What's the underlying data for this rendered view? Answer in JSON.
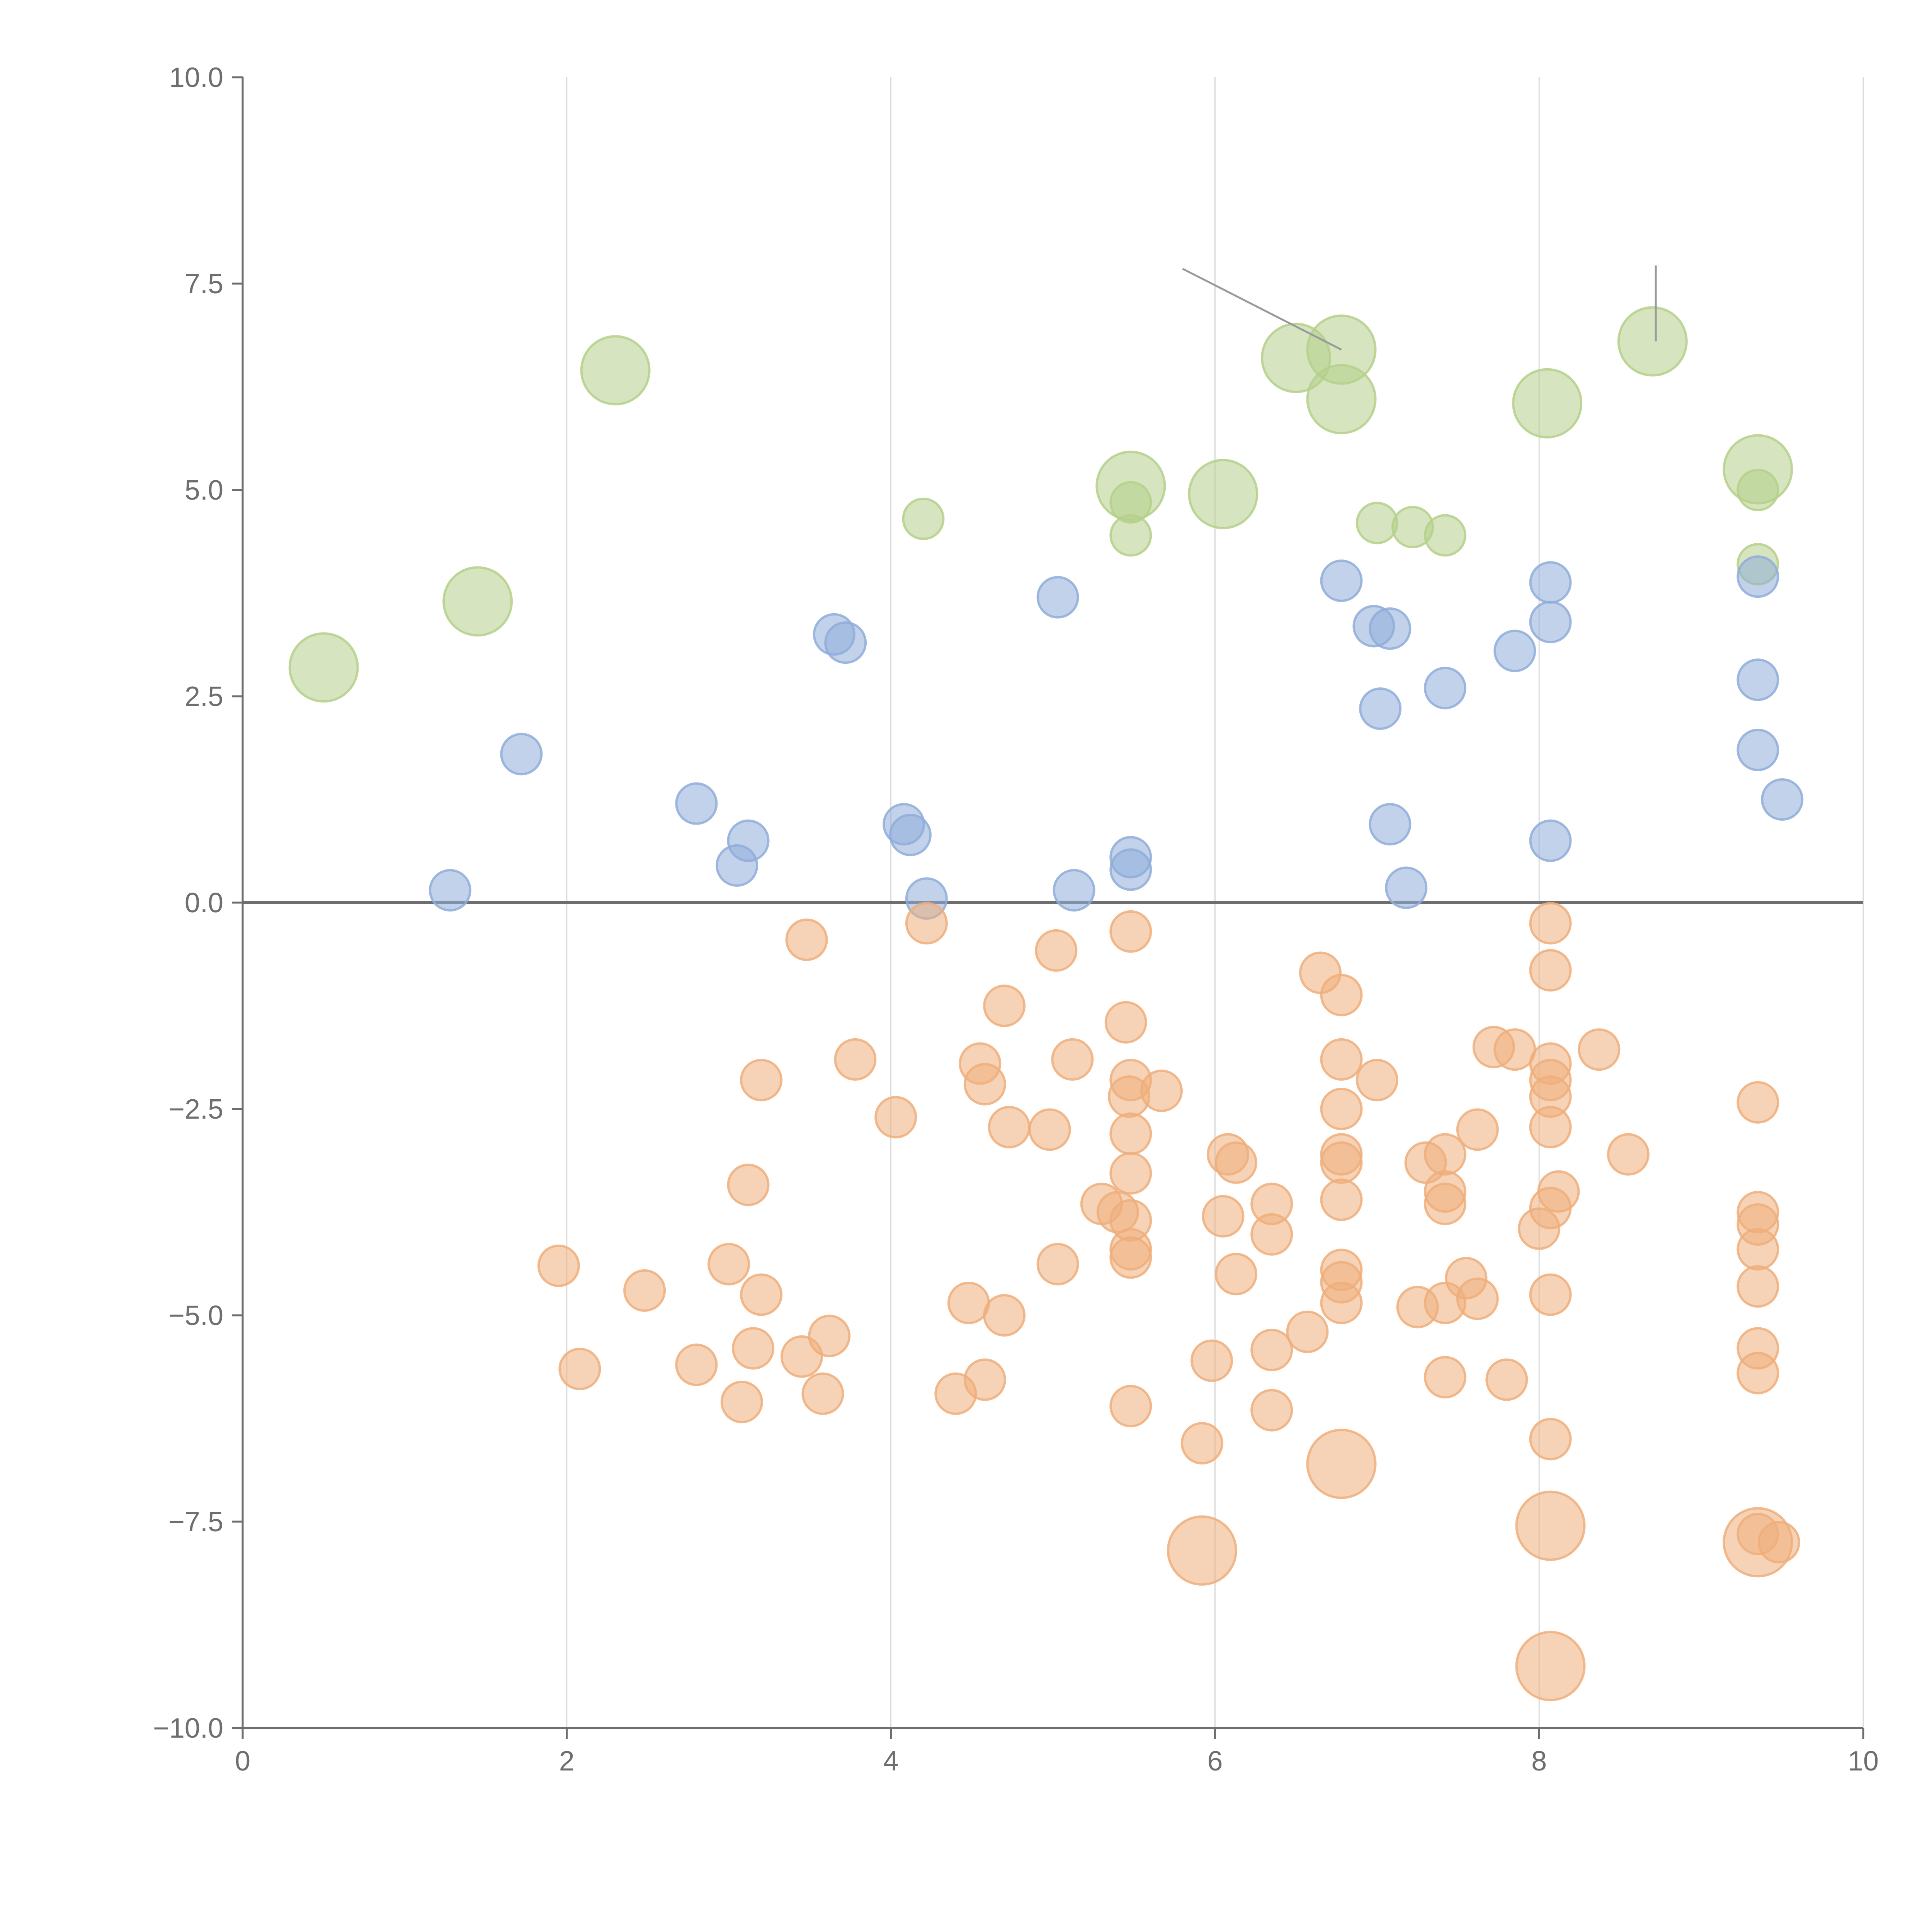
{
  "chart_data": {
    "type": "scatter",
    "title": "",
    "xlabel": "",
    "ylabel": "",
    "xlim": [
      0,
      10
    ],
    "ylim": [
      -10,
      10
    ],
    "grid": "vertical",
    "x_ticks": [
      0,
      2,
      4,
      6,
      8,
      10
    ],
    "x_tick_labels": [
      "0",
      "2",
      "4",
      "6",
      "8",
      "10"
    ],
    "y_ticks": [
      10,
      7.5,
      5,
      2.5,
      0,
      -2.5,
      -5,
      -7.5,
      -10
    ],
    "y_tick_labels": [
      "10.0",
      "7.5",
      "5.0",
      "2.5",
      "0.0",
      "−2.5",
      "−5.0",
      "−7.5",
      "−10.0"
    ],
    "reference_line_y": 0,
    "colors": {
      "green": "#b5d08a",
      "blue": "#8fadd9",
      "orange": "#eeae7b",
      "axis": "#6e6e6e",
      "grid": "#d9d9d9"
    },
    "series": [
      {
        "name": "green",
        "color": "#b5d08a",
        "points": [
          {
            "x": 0.5,
            "y": 2.85,
            "s": 2
          },
          {
            "x": 1.45,
            "y": 3.65,
            "s": 2
          },
          {
            "x": 2.3,
            "y": 6.45,
            "s": 2
          },
          {
            "x": 4.2,
            "y": 4.65,
            "s": 1
          },
          {
            "x": 5.48,
            "y": 5.05,
            "s": 2
          },
          {
            "x": 5.48,
            "y": 4.85,
            "s": 1
          },
          {
            "x": 5.48,
            "y": 4.45,
            "s": 1
          },
          {
            "x": 6.05,
            "y": 4.95,
            "s": 2
          },
          {
            "x": 6.5,
            "y": 6.6,
            "s": 2
          },
          {
            "x": 6.78,
            "y": 6.7,
            "s": 2
          },
          {
            "x": 6.78,
            "y": 6.1,
            "s": 2
          },
          {
            "x": 7.0,
            "y": 4.6,
            "s": 1
          },
          {
            "x": 7.22,
            "y": 4.55,
            "s": 1
          },
          {
            "x": 7.42,
            "y": 4.45,
            "s": 1
          },
          {
            "x": 8.05,
            "y": 6.05,
            "s": 2
          },
          {
            "x": 8.7,
            "y": 6.8,
            "s": 2
          },
          {
            "x": 9.35,
            "y": 5.25,
            "s": 2
          },
          {
            "x": 9.35,
            "y": 5.0,
            "s": 1
          },
          {
            "x": 9.35,
            "y": 4.1,
            "s": 1
          }
        ]
      },
      {
        "name": "blue",
        "color": "#8fadd9",
        "points": [
          {
            "x": 1.28,
            "y": 0.15,
            "s": 1
          },
          {
            "x": 1.72,
            "y": 1.8,
            "s": 1
          },
          {
            "x": 2.8,
            "y": 1.2,
            "s": 1
          },
          {
            "x": 3.05,
            "y": 0.45,
            "s": 1
          },
          {
            "x": 3.12,
            "y": 0.75,
            "s": 1
          },
          {
            "x": 3.65,
            "y": 3.25,
            "s": 1
          },
          {
            "x": 3.72,
            "y": 3.15,
            "s": 1
          },
          {
            "x": 4.08,
            "y": 0.95,
            "s": 1
          },
          {
            "x": 4.12,
            "y": 0.82,
            "s": 1
          },
          {
            "x": 4.22,
            "y": 0.05,
            "s": 1
          },
          {
            "x": 5.03,
            "y": 3.7,
            "s": 1
          },
          {
            "x": 5.13,
            "y": 0.15,
            "s": 1
          },
          {
            "x": 5.48,
            "y": 0.55,
            "s": 1
          },
          {
            "x": 5.48,
            "y": 0.4,
            "s": 1
          },
          {
            "x": 6.78,
            "y": 3.9,
            "s": 1
          },
          {
            "x": 6.98,
            "y": 3.35,
            "s": 1
          },
          {
            "x": 7.08,
            "y": 3.32,
            "s": 1
          },
          {
            "x": 7.02,
            "y": 2.35,
            "s": 1
          },
          {
            "x": 7.08,
            "y": 0.95,
            "s": 1
          },
          {
            "x": 7.18,
            "y": 0.18,
            "s": 1
          },
          {
            "x": 7.42,
            "y": 2.6,
            "s": 1
          },
          {
            "x": 7.85,
            "y": 3.05,
            "s": 1
          },
          {
            "x": 8.07,
            "y": 3.88,
            "s": 1
          },
          {
            "x": 8.07,
            "y": 3.4,
            "s": 1
          },
          {
            "x": 8.07,
            "y": 0.75,
            "s": 1
          },
          {
            "x": 9.35,
            "y": 3.95,
            "s": 1
          },
          {
            "x": 9.35,
            "y": 2.7,
            "s": 1
          },
          {
            "x": 9.35,
            "y": 1.85,
            "s": 1
          },
          {
            "x": 9.5,
            "y": 1.25,
            "s": 1
          }
        ]
      },
      {
        "name": "orange",
        "color": "#eeae7b",
        "points": [
          {
            "x": 1.95,
            "y": -4.4,
            "s": 1
          },
          {
            "x": 2.08,
            "y": -5.65,
            "s": 1
          },
          {
            "x": 2.48,
            "y": -4.7,
            "s": 1
          },
          {
            "x": 2.8,
            "y": -5.6,
            "s": 1
          },
          {
            "x": 3.0,
            "y": -4.38,
            "s": 1
          },
          {
            "x": 3.08,
            "y": -6.05,
            "s": 1
          },
          {
            "x": 3.12,
            "y": -3.42,
            "s": 1
          },
          {
            "x": 3.15,
            "y": -5.4,
            "s": 1
          },
          {
            "x": 3.2,
            "y": -2.15,
            "s": 1
          },
          {
            "x": 3.2,
            "y": -4.75,
            "s": 1
          },
          {
            "x": 3.45,
            "y": -5.5,
            "s": 1
          },
          {
            "x": 3.48,
            "y": -0.45,
            "s": 1
          },
          {
            "x": 3.58,
            "y": -5.95,
            "s": 1
          },
          {
            "x": 3.62,
            "y": -5.25,
            "s": 1
          },
          {
            "x": 3.78,
            "y": -1.9,
            "s": 1
          },
          {
            "x": 4.03,
            "y": -2.6,
            "s": 1
          },
          {
            "x": 4.22,
            "y": -0.25,
            "s": 1
          },
          {
            "x": 4.4,
            "y": -5.95,
            "s": 1
          },
          {
            "x": 4.48,
            "y": -4.85,
            "s": 1
          },
          {
            "x": 4.55,
            "y": -1.95,
            "s": 1
          },
          {
            "x": 4.58,
            "y": -2.2,
            "s": 1
          },
          {
            "x": 4.58,
            "y": -5.78,
            "s": 1
          },
          {
            "x": 4.7,
            "y": -1.25,
            "s": 1
          },
          {
            "x": 4.7,
            "y": -5.0,
            "s": 1
          },
          {
            "x": 4.73,
            "y": -2.72,
            "s": 1
          },
          {
            "x": 4.98,
            "y": -2.75,
            "s": 1
          },
          {
            "x": 5.02,
            "y": -0.58,
            "s": 1
          },
          {
            "x": 5.03,
            "y": -4.38,
            "s": 1
          },
          {
            "x": 5.12,
            "y": -1.9,
            "s": 1
          },
          {
            "x": 5.3,
            "y": -3.65,
            "s": 1
          },
          {
            "x": 5.4,
            "y": -3.75,
            "s": 1
          },
          {
            "x": 5.45,
            "y": -1.45,
            "s": 1
          },
          {
            "x": 5.47,
            "y": -2.35,
            "s": 1
          },
          {
            "x": 5.48,
            "y": -0.35,
            "s": 1
          },
          {
            "x": 5.48,
            "y": -2.15,
            "s": 1
          },
          {
            "x": 5.48,
            "y": -2.8,
            "s": 1
          },
          {
            "x": 5.48,
            "y": -3.28,
            "s": 1
          },
          {
            "x": 5.48,
            "y": -3.85,
            "s": 1
          },
          {
            "x": 5.48,
            "y": -4.2,
            "s": 1
          },
          {
            "x": 5.48,
            "y": -4.3,
            "s": 1
          },
          {
            "x": 5.48,
            "y": -6.1,
            "s": 1
          },
          {
            "x": 5.67,
            "y": -2.28,
            "s": 1
          },
          {
            "x": 5.92,
            "y": -6.55,
            "s": 1
          },
          {
            "x": 5.92,
            "y": -7.85,
            "s": 2
          },
          {
            "x": 5.98,
            "y": -5.55,
            "s": 1
          },
          {
            "x": 6.05,
            "y": -3.8,
            "s": 1
          },
          {
            "x": 6.08,
            "y": -3.05,
            "s": 1
          },
          {
            "x": 6.13,
            "y": -3.15,
            "s": 1
          },
          {
            "x": 6.13,
            "y": -4.5,
            "s": 1
          },
          {
            "x": 6.35,
            "y": -3.65,
            "s": 1
          },
          {
            "x": 6.35,
            "y": -4.02,
            "s": 1
          },
          {
            "x": 6.35,
            "y": -5.42,
            "s": 1
          },
          {
            "x": 6.35,
            "y": -6.15,
            "s": 1
          },
          {
            "x": 6.57,
            "y": -5.2,
            "s": 1
          },
          {
            "x": 6.65,
            "y": -0.85,
            "s": 1
          },
          {
            "x": 6.78,
            "y": -1.12,
            "s": 1
          },
          {
            "x": 6.78,
            "y": -1.9,
            "s": 1
          },
          {
            "x": 6.78,
            "y": -2.5,
            "s": 1
          },
          {
            "x": 6.78,
            "y": -3.05,
            "s": 1
          },
          {
            "x": 6.78,
            "y": -3.15,
            "s": 1
          },
          {
            "x": 6.78,
            "y": -3.6,
            "s": 1
          },
          {
            "x": 6.78,
            "y": -4.45,
            "s": 1
          },
          {
            "x": 6.78,
            "y": -4.6,
            "s": 1
          },
          {
            "x": 6.78,
            "y": -4.85,
            "s": 1
          },
          {
            "x": 6.78,
            "y": -6.8,
            "s": 2
          },
          {
            "x": 7.0,
            "y": -2.15,
            "s": 1
          },
          {
            "x": 7.25,
            "y": -4.9,
            "s": 1
          },
          {
            "x": 7.3,
            "y": -3.15,
            "s": 1
          },
          {
            "x": 7.42,
            "y": -3.05,
            "s": 1
          },
          {
            "x": 7.42,
            "y": -3.5,
            "s": 1
          },
          {
            "x": 7.42,
            "y": -3.65,
            "s": 1
          },
          {
            "x": 7.42,
            "y": -4.85,
            "s": 1
          },
          {
            "x": 7.42,
            "y": -5.75,
            "s": 1
          },
          {
            "x": 7.55,
            "y": -4.55,
            "s": 1
          },
          {
            "x": 7.62,
            "y": -2.75,
            "s": 1
          },
          {
            "x": 7.62,
            "y": -4.8,
            "s": 1
          },
          {
            "x": 7.72,
            "y": -1.75,
            "s": 1
          },
          {
            "x": 7.8,
            "y": -5.78,
            "s": 1
          },
          {
            "x": 7.85,
            "y": -1.78,
            "s": 1
          },
          {
            "x": 8.0,
            "y": -3.95,
            "s": 1
          },
          {
            "x": 8.07,
            "y": -0.25,
            "s": 1
          },
          {
            "x": 8.07,
            "y": -0.82,
            "s": 1
          },
          {
            "x": 8.07,
            "y": -1.95,
            "s": 1
          },
          {
            "x": 8.07,
            "y": -2.15,
            "s": 1
          },
          {
            "x": 8.07,
            "y": -2.35,
            "s": 1
          },
          {
            "x": 8.07,
            "y": -2.72,
            "s": 1
          },
          {
            "x": 8.07,
            "y": -3.7,
            "s": 1
          },
          {
            "x": 8.07,
            "y": -4.75,
            "s": 1
          },
          {
            "x": 8.07,
            "y": -6.5,
            "s": 1
          },
          {
            "x": 8.07,
            "y": -7.55,
            "s": 2
          },
          {
            "x": 8.07,
            "y": -9.25,
            "s": 2
          },
          {
            "x": 8.12,
            "y": -3.5,
            "s": 1
          },
          {
            "x": 8.37,
            "y": -1.78,
            "s": 1
          },
          {
            "x": 8.55,
            "y": -3.05,
            "s": 1
          },
          {
            "x": 9.35,
            "y": -2.42,
            "s": 1
          },
          {
            "x": 9.35,
            "y": -3.75,
            "s": 1
          },
          {
            "x": 9.35,
            "y": -3.9,
            "s": 1
          },
          {
            "x": 9.35,
            "y": -4.2,
            "s": 1
          },
          {
            "x": 9.35,
            "y": -4.65,
            "s": 1
          },
          {
            "x": 9.35,
            "y": -5.4,
            "s": 1
          },
          {
            "x": 9.35,
            "y": -5.7,
            "s": 1
          },
          {
            "x": 9.35,
            "y": -7.65,
            "s": 1
          },
          {
            "x": 9.35,
            "y": -7.75,
            "s": 2
          },
          {
            "x": 9.48,
            "y": -7.75,
            "s": 1
          }
        ]
      }
    ],
    "annotation_leaders": [
      {
        "x1": 5.8,
        "y1": 7.68,
        "x2": 6.78,
        "y2": 6.7
      },
      {
        "x1": 8.72,
        "y1": 7.72,
        "x2": 8.72,
        "y2": 6.8
      }
    ]
  }
}
